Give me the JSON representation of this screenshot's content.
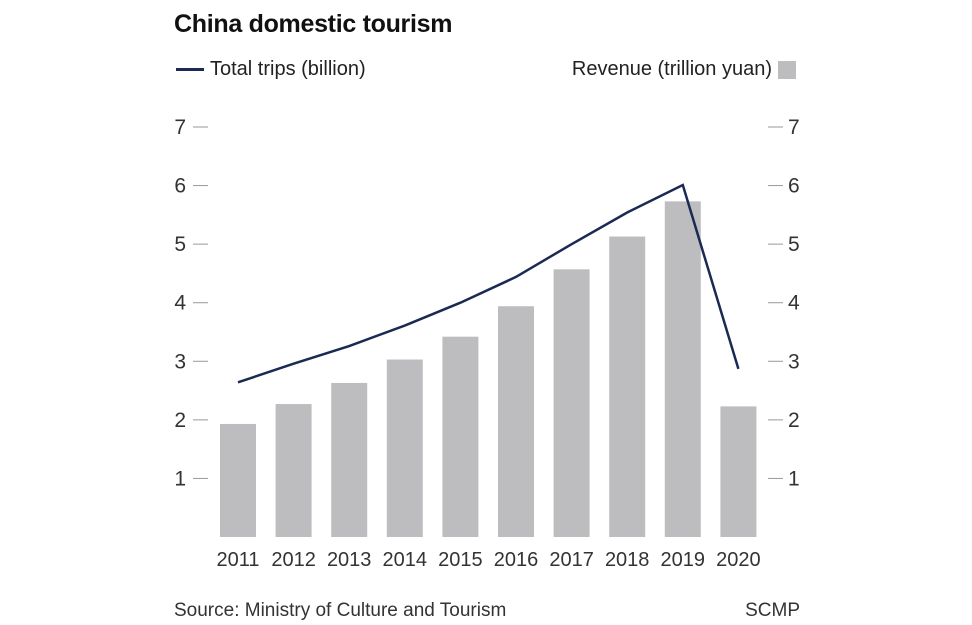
{
  "header": {
    "title": "China domestic tourism"
  },
  "legend": {
    "line_label": "Total trips (billion)",
    "bar_label": "Revenue (trillion yuan)"
  },
  "footer": {
    "source": "Source: Ministry of Culture and Tourism",
    "credit": "SCMP"
  },
  "colors": {
    "line": "#1a2a52",
    "bar": "#bdbdbf",
    "tick": "#999999"
  },
  "chart_data": {
    "type": "bar",
    "title": "China domestic tourism",
    "categories": [
      "2011",
      "2012",
      "2013",
      "2014",
      "2015",
      "2016",
      "2017",
      "2018",
      "2019",
      "2020"
    ],
    "series": [
      {
        "name": "Revenue (trillion yuan)",
        "kind": "bar",
        "values": [
          1.93,
          2.27,
          2.63,
          3.03,
          3.42,
          3.94,
          4.57,
          5.13,
          5.73,
          2.23
        ]
      },
      {
        "name": "Total trips (billion)",
        "kind": "line",
        "values": [
          2.64,
          2.96,
          3.26,
          3.61,
          4.0,
          4.44,
          5.0,
          5.54,
          6.01,
          2.87
        ]
      }
    ],
    "ylim": [
      0,
      7
    ],
    "yticks": [
      1,
      2,
      3,
      4,
      5,
      6,
      7
    ],
    "y_axis_sides": [
      "left",
      "right"
    ],
    "grid": false,
    "legend_position": "top"
  }
}
